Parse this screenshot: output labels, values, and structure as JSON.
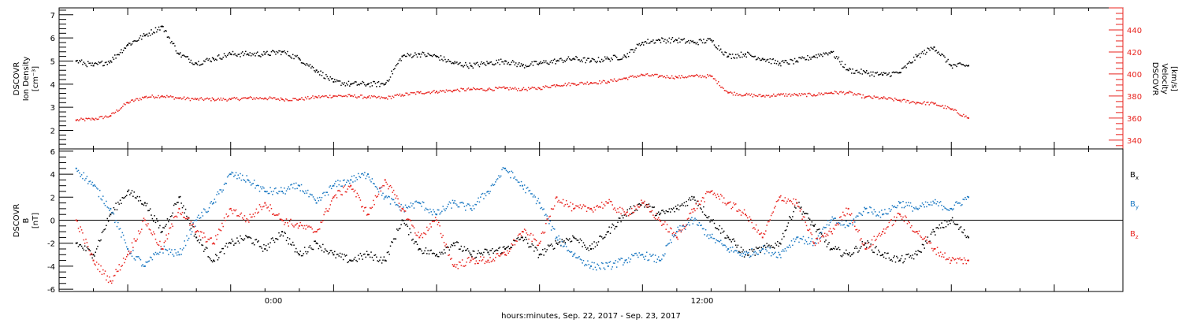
{
  "chart_data": [
    {
      "type": "scatter",
      "title": "",
      "ylabel_lines": [
        "DSCOVR",
        "Ion Density",
        "[cm⁻³]"
      ],
      "y2label_lines": [
        "DSCOVR",
        "Velocity",
        "[km/s]"
      ],
      "ylim": [
        1.2,
        7.3
      ],
      "y2lim": [
        332,
        460
      ],
      "yticks": [
        2,
        3,
        4,
        5,
        6,
        7
      ],
      "y2ticks": [
        340,
        360,
        380,
        400,
        420,
        440
      ],
      "ytick_labels": [
        "2",
        "3",
        "4",
        "5",
        "6",
        "7"
      ],
      "y2tick_labels": [
        "340",
        "360",
        "380",
        "400",
        "420",
        "440"
      ],
      "colors": {
        "density": "#000000",
        "velocity": "#e8231e"
      },
      "series": [
        {
          "axis": "left",
          "x": [
            -7.5,
            -7,
            -6.5,
            -6,
            -5.5,
            -5,
            -4.5,
            -4,
            -3.5,
            -3,
            -2.5,
            -2,
            -1.5,
            -1,
            -0.5,
            0,
            0.5,
            1,
            1.5,
            2,
            2.5,
            3,
            3.5,
            4,
            4.5,
            5,
            5.5,
            6,
            6.5,
            7,
            7.5,
            8,
            8.5,
            9,
            9.5,
            10,
            10.5,
            11,
            11.5,
            12,
            12.5,
            13,
            13.5,
            14,
            14.5,
            15,
            15.5,
            16,
            16.5,
            17,
            17.5,
            18,
            18.5
          ],
          "values": [
            5.0,
            4.8,
            5.0,
            5.7,
            6.1,
            6.5,
            5.3,
            4.9,
            5.1,
            5.3,
            5.3,
            5.3,
            5.4,
            5.1,
            4.6,
            4.1,
            4.0,
            4.0,
            4.0,
            5.2,
            5.3,
            5.2,
            4.9,
            4.8,
            4.9,
            5.0,
            4.8,
            4.9,
            5.0,
            5.1,
            5.0,
            5.1,
            5.2,
            5.8,
            5.9,
            5.9,
            5.8,
            5.9,
            5.2,
            5.3,
            5.1,
            4.9,
            5.0,
            5.2,
            5.4,
            4.6,
            4.5,
            4.4,
            4.5,
            5.2,
            5.6,
            4.8,
            4.8
          ]
        },
        {
          "axis": "right",
          "x": [
            -7.5,
            -7,
            -6.5,
            -6,
            -5.5,
            -5,
            -4.5,
            -4,
            -3.5,
            -3,
            -2.5,
            -2,
            -1.5,
            -1,
            -0.5,
            0,
            0.5,
            1,
            1.5,
            2,
            2.5,
            3,
            3.5,
            4,
            4.5,
            5,
            5.5,
            6,
            6.5,
            7,
            7.5,
            8,
            8.5,
            9,
            9.5,
            10,
            10.5,
            11,
            11.5,
            12,
            12.5,
            13,
            13.5,
            14,
            14.5,
            15,
            15.5,
            16,
            16.5,
            17,
            17.5,
            18,
            18.5
          ],
          "values": [
            358,
            359,
            362,
            374,
            379,
            380,
            378,
            377,
            377,
            377,
            378,
            378,
            377,
            377,
            379,
            380,
            380,
            379,
            378,
            381,
            383,
            384,
            385,
            386,
            386,
            387,
            386,
            387,
            390,
            391,
            392,
            393,
            396,
            399,
            398,
            397,
            398,
            398,
            383,
            381,
            380,
            381,
            381,
            381,
            383,
            383,
            379,
            378,
            376,
            374,
            373,
            368,
            360
          ]
        }
      ]
    },
    {
      "type": "scatter",
      "title": "",
      "ylabel_lines": [
        "DSCOVR",
        "B",
        "[nT]"
      ],
      "ylim": [
        -6.2,
        6.2
      ],
      "yticks": [
        -6,
        -4,
        -2,
        0,
        2,
        4,
        6
      ],
      "ytick_labels": [
        "-6",
        "-4",
        "-2",
        "0",
        "2",
        "4",
        "6"
      ],
      "zero_line": true,
      "legend_placement": "right",
      "series": [
        {
          "name": "B",
          "sub": "x",
          "color": "#000000",
          "x": [
            -7.5,
            -7,
            -6.5,
            -6,
            -5.5,
            -5,
            -4.5,
            -4,
            -3.5,
            -3,
            -2.5,
            -2,
            -1.5,
            -1,
            -0.5,
            0,
            0.5,
            1,
            1.5,
            2,
            2.5,
            3,
            3.5,
            4,
            4.5,
            5,
            5.5,
            6,
            6.5,
            7,
            7.5,
            8,
            8.5,
            9,
            9.5,
            10,
            10.5,
            11,
            11.5,
            12,
            12.5,
            13,
            13.5,
            14,
            14.5,
            15,
            15.5,
            16,
            16.5,
            17,
            17.5,
            18,
            18.5
          ],
          "values": [
            -2.0,
            -3.0,
            0.5,
            2.5,
            1.5,
            -1.0,
            2.0,
            -1.5,
            -3.5,
            -2.0,
            -1.5,
            -2.5,
            -1.0,
            -3.0,
            -2.0,
            -3.0,
            -3.5,
            -3.0,
            -3.5,
            0.0,
            -2.5,
            -3.0,
            -2.0,
            -3.0,
            -2.8,
            -2.5,
            -1.5,
            -3.0,
            -2.0,
            -1.5,
            -2.5,
            -1.0,
            0.5,
            1.5,
            0.5,
            1.0,
            2.0,
            0.0,
            -1.5,
            -3.0,
            -2.5,
            -2.0,
            1.5,
            -0.5,
            -2.5,
            -3.0,
            -2.0,
            -3.0,
            -3.5,
            -3.0,
            -1.0,
            0.0,
            -1.5
          ]
        },
        {
          "name": "B",
          "sub": "y",
          "color": "#1a78c2",
          "x": [
            -7.5,
            -7,
            -6.5,
            -6,
            -5.5,
            -5,
            -4.5,
            -4,
            -3.5,
            -3,
            -2.5,
            -2,
            -1.5,
            -1,
            -0.5,
            0,
            0.5,
            1,
            1.5,
            2,
            2.5,
            3,
            3.5,
            4,
            4.5,
            5,
            5.5,
            6,
            6.5,
            7,
            7.5,
            8,
            8.5,
            9,
            9.5,
            10,
            10.5,
            11,
            11.5,
            12,
            12.5,
            13,
            13.5,
            14,
            14.5,
            15,
            15.5,
            16,
            16.5,
            17,
            17.5,
            18,
            18.5
          ],
          "values": [
            4.5,
            3.0,
            1.0,
            -2.5,
            -4.0,
            -2.5,
            -3.0,
            0.0,
            1.5,
            4.0,
            3.5,
            2.5,
            2.5,
            3.0,
            1.5,
            3.0,
            3.5,
            4.0,
            2.0,
            1.0,
            1.5,
            0.5,
            1.5,
            1.0,
            2.5,
            4.5,
            3.0,
            1.5,
            -1.5,
            -3.0,
            -4.0,
            -4.0,
            -3.5,
            -3.0,
            -3.5,
            -1.0,
            0.0,
            -1.5,
            -2.5,
            -3.0,
            -2.5,
            -3.0,
            -1.5,
            -2.0,
            0.0,
            -0.5,
            1.0,
            0.5,
            1.5,
            1.0,
            1.5,
            1.0,
            2.0
          ]
        },
        {
          "name": "B",
          "sub": "z",
          "color": "#e8231e",
          "x": [
            -7.5,
            -7,
            -6.5,
            -6,
            -5.5,
            -5,
            -4.5,
            -4,
            -3.5,
            -3,
            -2.5,
            -2,
            -1.5,
            -1,
            -0.5,
            0,
            0.5,
            1,
            1.5,
            2,
            2.5,
            3,
            3.5,
            4,
            4.5,
            5,
            5.5,
            6,
            6.5,
            7,
            7.5,
            8,
            8.5,
            9,
            9.5,
            10,
            10.5,
            11,
            11.5,
            12,
            12.5,
            13,
            13.5,
            14,
            14.5,
            15,
            15.5,
            16,
            16.5,
            17,
            17.5,
            18,
            18.5
          ],
          "values": [
            0.0,
            -3.5,
            -5.3,
            -3.0,
            0.0,
            -2.5,
            1.0,
            -1.0,
            -2.0,
            1.0,
            0.0,
            1.5,
            0.0,
            -0.5,
            -1.0,
            2.0,
            3.0,
            0.5,
            3.5,
            1.0,
            -1.5,
            0.0,
            -4.0,
            -3.5,
            -3.5,
            -3.0,
            -1.0,
            -2.0,
            2.0,
            1.0,
            1.0,
            1.5,
            0.5,
            1.5,
            0.0,
            -1.5,
            1.0,
            2.5,
            1.5,
            0.5,
            -1.5,
            2.0,
            1.5,
            -2.0,
            -1.0,
            1.0,
            -2.5,
            -1.0,
            0.5,
            -1.0,
            -2.5,
            -3.5,
            -3.5
          ]
        }
      ]
    }
  ],
  "x_axis": {
    "xlim": [
      -8.0,
      23.0
    ],
    "major_ticks": [
      0,
      12
    ],
    "tick_labels": [
      "0:00",
      "12:00"
    ],
    "xlabel": "hours:minutes, Sep. 22, 2017 - Sep. 23, 2017"
  }
}
